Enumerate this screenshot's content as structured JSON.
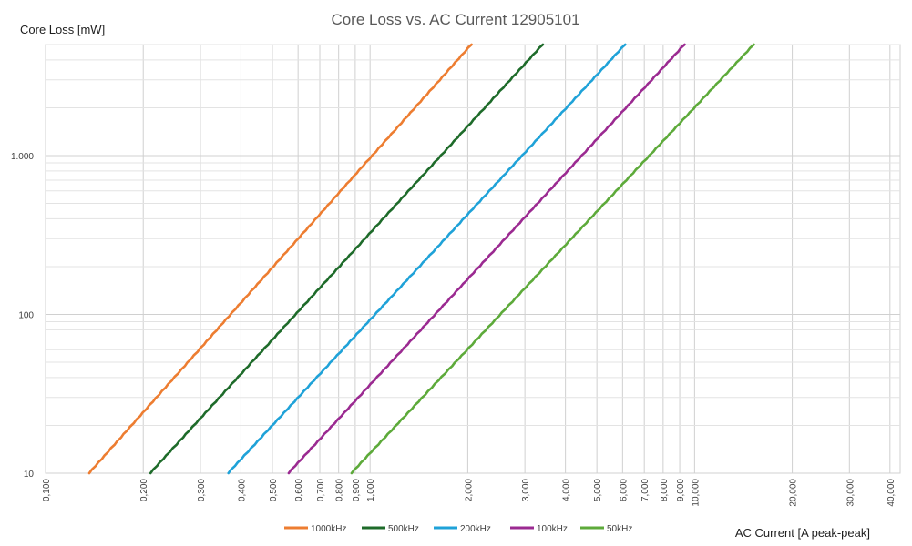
{
  "chart_data": {
    "type": "line",
    "title": "Core Loss vs. AC Current 12905101",
    "xlabel": "AC Current [A peak-peak]",
    "ylabel": "Core Loss [mW]",
    "x_scale": "log",
    "y_scale": "log",
    "xlim": [
      0.1,
      43
    ],
    "ylim": [
      10,
      5000
    ],
    "grid": "on",
    "legend_position": "bottom",
    "x_tick_labels": [
      {
        "value": 0.1,
        "label": "0,100"
      },
      {
        "value": 0.2,
        "label": "0,200"
      },
      {
        "value": 0.3,
        "label": "0,300"
      },
      {
        "value": 0.4,
        "label": "0,400"
      },
      {
        "value": 0.5,
        "label": "0,500"
      },
      {
        "value": 0.6,
        "label": "0,600"
      },
      {
        "value": 0.7,
        "label": "0,700"
      },
      {
        "value": 0.8,
        "label": "0,800"
      },
      {
        "value": 0.9,
        "label": "0,900"
      },
      {
        "value": 1,
        "label": "1,000"
      },
      {
        "value": 2,
        "label": "2,000"
      },
      {
        "value": 3,
        "label": "3,000"
      },
      {
        "value": 4,
        "label": "4,000"
      },
      {
        "value": 5,
        "label": "5,000"
      },
      {
        "value": 6,
        "label": "6,000"
      },
      {
        "value": 7,
        "label": "7,000"
      },
      {
        "value": 8,
        "label": "8,000"
      },
      {
        "value": 9,
        "label": "9,000"
      },
      {
        "value": 10,
        "label": "10,000"
      },
      {
        "value": 20,
        "label": "20,000"
      },
      {
        "value": 30,
        "label": "30,000"
      },
      {
        "value": 40,
        "label": "40,000"
      }
    ],
    "y_tick_labels": [
      {
        "value": 10,
        "label": "10"
      },
      {
        "value": 100,
        "label": "100"
      },
      {
        "value": 1000,
        "label": "1.000"
      }
    ],
    "series": [
      {
        "name": "1000kHz",
        "color": "#ED7D31",
        "x": [
          0.136,
          2.05
        ],
        "y": [
          10,
          5000
        ]
      },
      {
        "name": "500kHz",
        "color": "#1E6B2A",
        "x": [
          0.21,
          3.4
        ],
        "y": [
          10,
          5000
        ]
      },
      {
        "name": "200kHz",
        "color": "#1FA2D8",
        "x": [
          0.365,
          6.1
        ],
        "y": [
          10,
          5000
        ]
      },
      {
        "name": "100kHz",
        "color": "#9B2A91",
        "x": [
          0.56,
          9.3
        ],
        "y": [
          10,
          5000
        ]
      },
      {
        "name": "50kHz",
        "color": "#5DAA3A",
        "x": [
          0.875,
          15.2
        ],
        "y": [
          10,
          5000
        ]
      }
    ]
  }
}
